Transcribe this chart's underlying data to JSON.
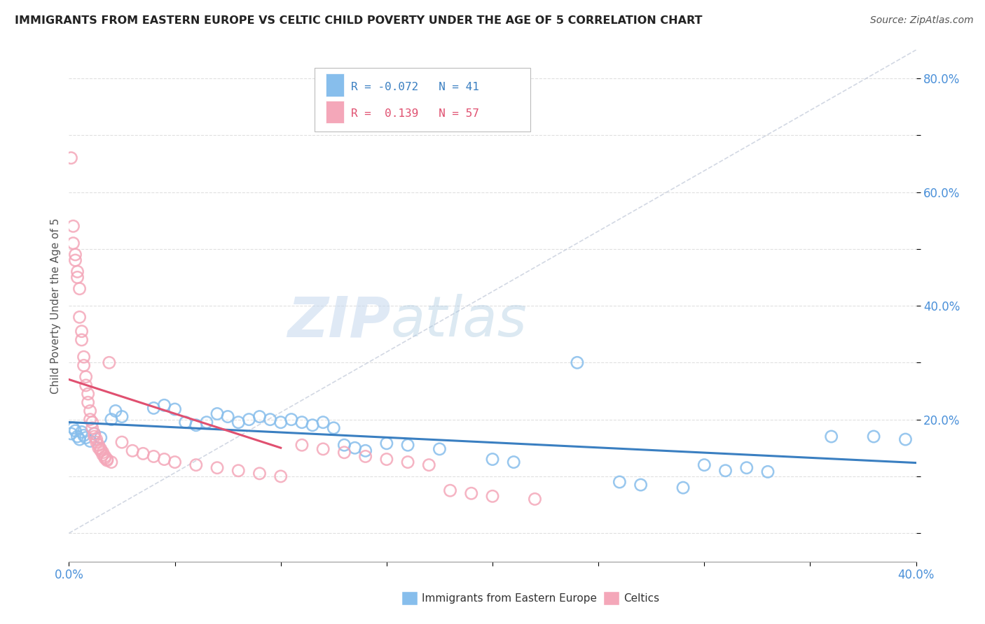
{
  "title": "IMMIGRANTS FROM EASTERN EUROPE VS CELTIC CHILD POVERTY UNDER THE AGE OF 5 CORRELATION CHART",
  "source": "Source: ZipAtlas.com",
  "ylabel": "Child Poverty Under the Age of 5",
  "xlim": [
    0.0,
    0.4
  ],
  "ylim": [
    -0.05,
    0.85
  ],
  "color_blue": "#87BEEC",
  "color_pink": "#F4A7B9",
  "color_blue_line": "#3A7FC1",
  "color_pink_line": "#E05070",
  "blue_scatter": [
    [
      0.001,
      0.175
    ],
    [
      0.002,
      0.185
    ],
    [
      0.003,
      0.18
    ],
    [
      0.004,
      0.17
    ],
    [
      0.005,
      0.165
    ],
    [
      0.006,
      0.178
    ],
    [
      0.007,
      0.172
    ],
    [
      0.008,
      0.168
    ],
    [
      0.01,
      0.162
    ],
    [
      0.012,
      0.175
    ],
    [
      0.015,
      0.168
    ],
    [
      0.02,
      0.2
    ],
    [
      0.022,
      0.215
    ],
    [
      0.025,
      0.205
    ],
    [
      0.04,
      0.22
    ],
    [
      0.045,
      0.225
    ],
    [
      0.05,
      0.218
    ],
    [
      0.055,
      0.195
    ],
    [
      0.06,
      0.19
    ],
    [
      0.065,
      0.195
    ],
    [
      0.07,
      0.21
    ],
    [
      0.075,
      0.205
    ],
    [
      0.08,
      0.195
    ],
    [
      0.085,
      0.2
    ],
    [
      0.09,
      0.205
    ],
    [
      0.095,
      0.2
    ],
    [
      0.1,
      0.195
    ],
    [
      0.105,
      0.2
    ],
    [
      0.11,
      0.195
    ],
    [
      0.115,
      0.19
    ],
    [
      0.12,
      0.195
    ],
    [
      0.125,
      0.185
    ],
    [
      0.13,
      0.155
    ],
    [
      0.135,
      0.15
    ],
    [
      0.14,
      0.145
    ],
    [
      0.15,
      0.158
    ],
    [
      0.16,
      0.155
    ],
    [
      0.175,
      0.148
    ],
    [
      0.2,
      0.13
    ],
    [
      0.21,
      0.125
    ],
    [
      0.24,
      0.3
    ],
    [
      0.26,
      0.09
    ],
    [
      0.27,
      0.085
    ],
    [
      0.29,
      0.08
    ],
    [
      0.3,
      0.12
    ],
    [
      0.31,
      0.11
    ],
    [
      0.32,
      0.115
    ],
    [
      0.33,
      0.108
    ],
    [
      0.36,
      0.17
    ],
    [
      0.38,
      0.17
    ],
    [
      0.395,
      0.165
    ]
  ],
  "pink_scatter": [
    [
      0.001,
      0.66
    ],
    [
      0.002,
      0.54
    ],
    [
      0.002,
      0.51
    ],
    [
      0.003,
      0.49
    ],
    [
      0.003,
      0.48
    ],
    [
      0.004,
      0.46
    ],
    [
      0.004,
      0.45
    ],
    [
      0.005,
      0.43
    ],
    [
      0.005,
      0.38
    ],
    [
      0.006,
      0.355
    ],
    [
      0.006,
      0.34
    ],
    [
      0.007,
      0.31
    ],
    [
      0.007,
      0.295
    ],
    [
      0.008,
      0.275
    ],
    [
      0.008,
      0.26
    ],
    [
      0.009,
      0.245
    ],
    [
      0.009,
      0.23
    ],
    [
      0.01,
      0.215
    ],
    [
      0.01,
      0.2
    ],
    [
      0.011,
      0.195
    ],
    [
      0.011,
      0.185
    ],
    [
      0.012,
      0.175
    ],
    [
      0.012,
      0.17
    ],
    [
      0.013,
      0.165
    ],
    [
      0.013,
      0.16
    ],
    [
      0.014,
      0.155
    ],
    [
      0.014,
      0.15
    ],
    [
      0.015,
      0.148
    ],
    [
      0.015,
      0.145
    ],
    [
      0.016,
      0.142
    ],
    [
      0.016,
      0.138
    ],
    [
      0.017,
      0.135
    ],
    [
      0.017,
      0.132
    ],
    [
      0.018,
      0.13
    ],
    [
      0.018,
      0.128
    ],
    [
      0.019,
      0.3
    ],
    [
      0.02,
      0.125
    ],
    [
      0.025,
      0.16
    ],
    [
      0.03,
      0.145
    ],
    [
      0.035,
      0.14
    ],
    [
      0.04,
      0.135
    ],
    [
      0.045,
      0.13
    ],
    [
      0.05,
      0.125
    ],
    [
      0.06,
      0.12
    ],
    [
      0.07,
      0.115
    ],
    [
      0.08,
      0.11
    ],
    [
      0.09,
      0.105
    ],
    [
      0.1,
      0.1
    ],
    [
      0.11,
      0.155
    ],
    [
      0.12,
      0.148
    ],
    [
      0.13,
      0.142
    ],
    [
      0.14,
      0.135
    ],
    [
      0.15,
      0.13
    ],
    [
      0.16,
      0.125
    ],
    [
      0.17,
      0.12
    ],
    [
      0.18,
      0.075
    ],
    [
      0.19,
      0.07
    ],
    [
      0.2,
      0.065
    ],
    [
      0.22,
      0.06
    ]
  ],
  "watermark_zip": "ZIP",
  "watermark_atlas": "atlas",
  "background_color": "#FFFFFF",
  "grid_color": "#CCCCCC"
}
